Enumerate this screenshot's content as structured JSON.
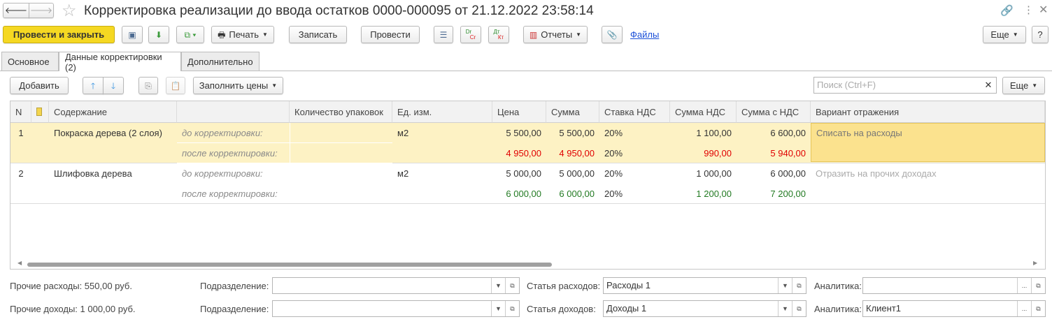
{
  "window": {
    "title": "Корректировка реализации до ввода остатков 0000-000095 от 21.12.2022 23:58:14"
  },
  "toolbar": {
    "post_close": "Провести и закрыть",
    "print": "Печать",
    "save": "Записать",
    "post": "Провести",
    "reports": "Отчеты",
    "files": "Файлы",
    "more": "Еще",
    "help": "?",
    "dr": "Dr",
    "cr": "Cr",
    "dt": "Дт",
    "kt": "Кт"
  },
  "tabs": [
    {
      "label": "Основное"
    },
    {
      "label": "Данные корректировки (2)"
    },
    {
      "label": "Дополнительно"
    }
  ],
  "table_toolbar": {
    "add": "Добавить",
    "fill_prices": "Заполнить цены",
    "search_placeholder": "Поиск (Ctrl+F)",
    "more": "Еще"
  },
  "table": {
    "headers": [
      "N",
      "",
      "Содержание",
      "",
      "Количество упаковок",
      "Ед. изм.",
      "Цена",
      "Сумма",
      "Ставка НДС",
      "Сумма НДС",
      "Сумма с НДС",
      "Вариант отражения"
    ],
    "rows": [
      {
        "n": "1",
        "content": "Покраска дерева (2 слоя)",
        "unit": "м2",
        "variant": "Списать на расходы",
        "before": {
          "label": "до корректировки:",
          "qty": "",
          "price": "5 500,00",
          "sum": "5 500,00",
          "rate": "20%",
          "vat": "1 100,00",
          "total": "6 600,00"
        },
        "after": {
          "label": "после корректировки:",
          "qty": "",
          "price": "4 950,00",
          "sum": "4 950,00",
          "rate": "20%",
          "vat": "990,00",
          "total": "5 940,00"
        }
      },
      {
        "n": "2",
        "content": "Шлифовка дерева",
        "unit": "м2",
        "variant": "Отразить на прочих доходах",
        "before": {
          "label": "до корректировки:",
          "qty": "",
          "price": "5 000,00",
          "sum": "5 000,00",
          "rate": "20%",
          "vat": "1 000,00",
          "total": "6 000,00"
        },
        "after": {
          "label": "после корректировки:",
          "qty": "",
          "price": "6 000,00",
          "sum": "6 000,00",
          "rate": "20%",
          "vat": "1 200,00",
          "total": "7 200,00"
        }
      }
    ]
  },
  "footer": {
    "expenses": "Прочие расходы: 550,00 руб.",
    "income": "Прочие доходы:  1 000,00 руб.",
    "dept_label": "Подразделение:",
    "dept1": "",
    "dept2": "",
    "exp_item_label": "Статья расходов:",
    "exp_item": "Расходы 1",
    "inc_item_label": "Статья доходов:",
    "inc_item": "Доходы 1",
    "analytics_label": "Аналитика:",
    "analytics1": "",
    "analytics2": "Клиент1"
  },
  "colors": {
    "primary": "#f5d822",
    "selected_row": "#fdf2c4",
    "decrease": "#e00000",
    "increase": "#227a22",
    "link": "#1a4fd8"
  }
}
